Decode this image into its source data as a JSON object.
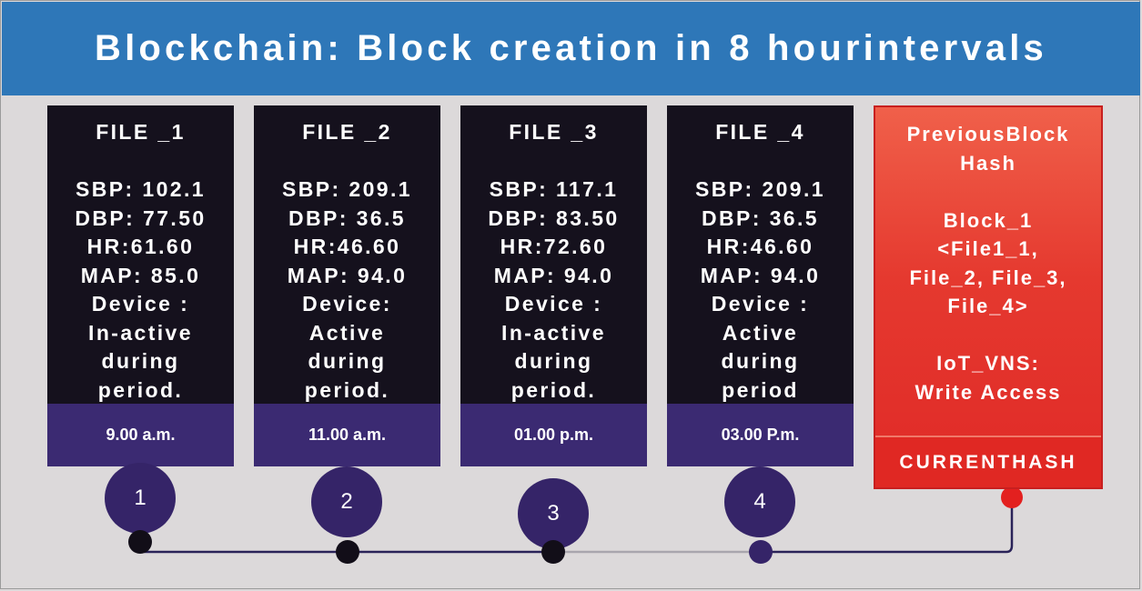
{
  "title": "Blockchain: Block creation in 8 hourintervals",
  "files": [
    {
      "name": "FILE _1",
      "lines": [
        "SBP: 102.1",
        "DBP: 77.50",
        "HR:61.60",
        "MAP: 85.0",
        "Device :",
        "In-active",
        "during",
        "period."
      ],
      "time": "9.00 a.m.",
      "step": "1"
    },
    {
      "name": "FILE _2",
      "lines": [
        "SBP: 209.1",
        "DBP: 36.5",
        "HR:46.60",
        "MAP: 94.0",
        "Device:",
        "Active",
        "during",
        "period."
      ],
      "time": "11.00 a.m.",
      "step": "2"
    },
    {
      "name": "FILE _3",
      "lines": [
        "SBP: 117.1",
        "DBP: 83.50",
        "HR:72.60",
        "MAP: 94.0",
        "Device :",
        "In-active",
        "during",
        "period."
      ],
      "time": "01.00 p.m.",
      "step": "3"
    },
    {
      "name": "FILE _4",
      "lines": [
        "SBP: 209.1",
        "DBP: 36.5",
        "HR:46.60",
        "MAP: 94.0",
        "Device :",
        "Active",
        "during",
        "period"
      ],
      "time": "03.00 P.m.",
      "step": "4"
    }
  ],
  "hash_block": {
    "heading": [
      "PreviousBlock",
      "Hash"
    ],
    "block_lines": [
      "Block_1",
      "<File1_1,",
      "File_2, File_3,",
      "File_4>"
    ],
    "access_lines": [
      "IoT_VNS:",
      "Write Access"
    ],
    "footer": "CURRENTHASH"
  },
  "colors": {
    "header": "#2e77b8",
    "card": "#15111d",
    "card_footer": "#3b2a72",
    "hash_block": "#e02a27",
    "connector": "#2a2358"
  }
}
